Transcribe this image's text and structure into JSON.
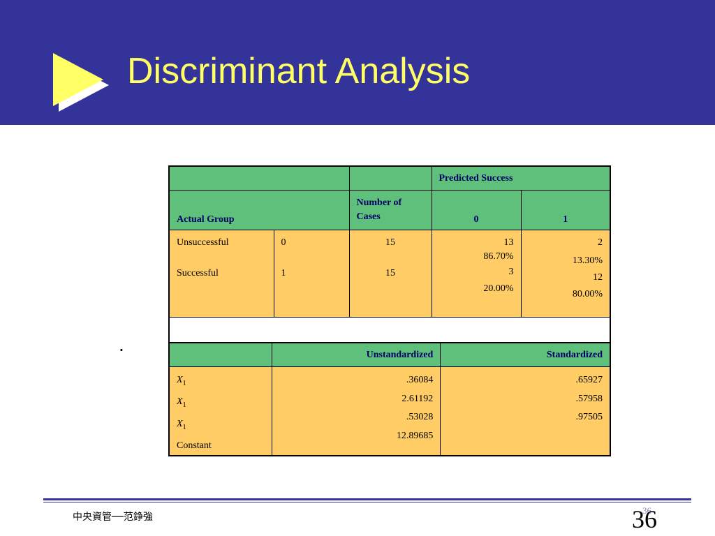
{
  "slide": {
    "title": "Discriminant Analysis",
    "bullet": ".",
    "footer": "中央資管──范錚強",
    "page_small": "36",
    "page_big": "36"
  },
  "colors": {
    "header_bg": "#333399",
    "title": "#ffff66",
    "table_header": "#5ec07a",
    "table_body": "#ffcc66",
    "header_text": "#000066"
  },
  "classification": {
    "predicted": "Predicted Success",
    "actual_group": "Actual Group",
    "number_of_cases": "Number of Cases",
    "col0": "0",
    "col1": "1",
    "rows": [
      {
        "group": "Unsuccessful",
        "code": "0",
        "n": "15",
        "p0_count": "13",
        "p0_pct": "86.70%",
        "p1_count": "2",
        "p1_pct": "13.30%"
      },
      {
        "group": "Successful",
        "code": "1",
        "n": "15",
        "p0_count": "3",
        "p0_pct": "20.00%",
        "p1_count": "12",
        "p1_pct": "80.00%"
      }
    ]
  },
  "coefficients": {
    "unstd": "Unstandardized",
    "std": "Standardized",
    "rows": [
      {
        "var": "X",
        "sub": "1",
        "unstd": ".36084",
        "std": ".65927"
      },
      {
        "var": "X",
        "sub": "1",
        "unstd": "2.61192",
        "std": ".57958"
      },
      {
        "var": "X",
        "sub": "1",
        "unstd": ".53028",
        "std": ".97505"
      },
      {
        "var": "Constant",
        "sub": "",
        "unstd": "12.89685",
        "std": ""
      }
    ]
  }
}
